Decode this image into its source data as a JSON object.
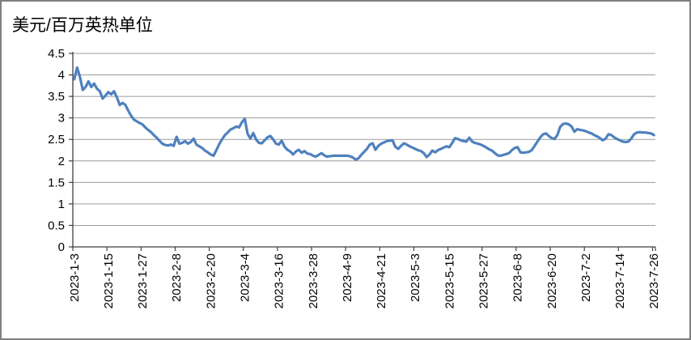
{
  "window": {
    "background": "#ffffff",
    "border_color": "#7f7f7f"
  },
  "chart_data": {
    "type": "line",
    "title": "美元/百万英热单位",
    "legend": "none",
    "grid": "horizontal",
    "x_axis": {
      "unit": "date",
      "start": "2023-1-3",
      "end": "2023-7-26",
      "frequency": "daily",
      "label_every_n_points": 12,
      "tick_labels": [
        "2023-1-3",
        "2023-1-15",
        "2023-1-27",
        "2023-2-8",
        "2023-2-20",
        "2023-3-4",
        "2023-3-16",
        "2023-3-28",
        "2023-4-9",
        "2023-4-21",
        "2023-5-3",
        "2023-5-15",
        "2023-5-27",
        "2023-6-8",
        "2023-6-20",
        "2023-7-2",
        "2023-7-14",
        "2023-7-26"
      ]
    },
    "y_axis": {
      "min": 0,
      "max": 4.5,
      "step": 0.5,
      "tick_labels": [
        "0",
        "0.5",
        "1",
        "1.5",
        "2",
        "2.5",
        "3",
        "3.5",
        "4",
        "4.5"
      ]
    },
    "series": [
      {
        "color": "#4F81BD",
        "values": [
          3.9,
          4.17,
          3.95,
          3.65,
          3.72,
          3.85,
          3.72,
          3.8,
          3.68,
          3.62,
          3.45,
          3.52,
          3.6,
          3.55,
          3.62,
          3.48,
          3.3,
          3.35,
          3.3,
          3.17,
          3.05,
          2.96,
          2.92,
          2.88,
          2.85,
          2.78,
          2.72,
          2.67,
          2.6,
          2.54,
          2.47,
          2.4,
          2.37,
          2.36,
          2.38,
          2.35,
          2.56,
          2.4,
          2.42,
          2.46,
          2.4,
          2.44,
          2.52,
          2.38,
          2.34,
          2.3,
          2.24,
          2.2,
          2.15,
          2.12,
          2.25,
          2.39,
          2.5,
          2.6,
          2.66,
          2.73,
          2.76,
          2.8,
          2.78,
          2.9,
          2.98,
          2.63,
          2.52,
          2.65,
          2.5,
          2.42,
          2.41,
          2.48,
          2.55,
          2.58,
          2.5,
          2.4,
          2.38,
          2.47,
          2.33,
          2.26,
          2.22,
          2.15,
          2.22,
          2.26,
          2.19,
          2.23,
          2.17,
          2.16,
          2.12,
          2.1,
          2.14,
          2.18,
          2.13,
          2.1,
          2.11,
          2.12,
          2.12,
          2.12,
          2.12,
          2.12,
          2.12,
          2.11,
          2.08,
          2.03,
          2.06,
          2.14,
          2.21,
          2.28,
          2.38,
          2.41,
          2.26,
          2.35,
          2.4,
          2.43,
          2.46,
          2.47,
          2.48,
          2.33,
          2.28,
          2.35,
          2.41,
          2.38,
          2.34,
          2.31,
          2.28,
          2.25,
          2.23,
          2.18,
          2.09,
          2.15,
          2.24,
          2.2,
          2.25,
          2.28,
          2.31,
          2.34,
          2.32,
          2.42,
          2.53,
          2.51,
          2.48,
          2.46,
          2.45,
          2.54,
          2.45,
          2.42,
          2.4,
          2.38,
          2.35,
          2.31,
          2.27,
          2.24,
          2.18,
          2.13,
          2.12,
          2.14,
          2.16,
          2.18,
          2.25,
          2.3,
          2.32,
          2.2,
          2.19,
          2.2,
          2.21,
          2.25,
          2.35,
          2.45,
          2.55,
          2.62,
          2.64,
          2.58,
          2.53,
          2.51,
          2.6,
          2.79,
          2.86,
          2.87,
          2.85,
          2.8,
          2.68,
          2.74,
          2.72,
          2.71,
          2.69,
          2.66,
          2.64,
          2.6,
          2.57,
          2.53,
          2.48,
          2.52,
          2.62,
          2.6,
          2.55,
          2.51,
          2.48,
          2.45,
          2.44,
          2.45,
          2.52,
          2.62,
          2.66,
          2.67,
          2.66,
          2.66,
          2.65,
          2.64,
          2.6
        ]
      }
    ]
  },
  "style": {
    "grid_color": "#9b9b9b",
    "axis_color": "#3f3f3f",
    "tick_color": "#3f3f3f",
    "text_color": "#000000",
    "line_width": 3.2,
    "axis_font_size": 15,
    "title_font_size": 21
  }
}
